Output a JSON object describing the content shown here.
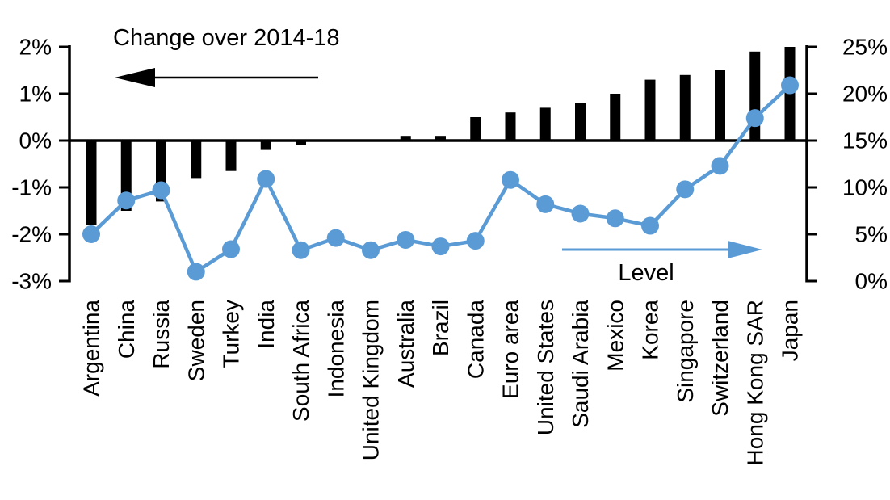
{
  "chart_data": {
    "type": "bar",
    "subtype": "bar-line-combo-dual-axis",
    "categories": [
      "Argentina",
      "China",
      "Russia",
      "Sweden",
      "Turkey",
      "India",
      "South Africa",
      "Indonesia",
      "United Kingdom",
      "Australia",
      "Brazil",
      "Canada",
      "Euro area",
      "United States",
      "Saudi Arabia",
      "Mexico",
      "Korea",
      "Singapore",
      "Switzerland",
      "Hong Kong SAR",
      "Japan"
    ],
    "series": [
      {
        "name": "Change over 2014-18",
        "type": "bar",
        "axis": "left",
        "color": "#000000",
        "values": [
          -1.8,
          -1.5,
          -1.3,
          -0.8,
          -0.65,
          -0.2,
          -0.1,
          0,
          0,
          0.1,
          0.1,
          0.5,
          0.6,
          0.7,
          0.8,
          1.0,
          1.3,
          1.4,
          1.5,
          1.9,
          2.0
        ]
      },
      {
        "name": "Level",
        "type": "line",
        "axis": "right",
        "color": "#5B9BD5",
        "values": [
          5.0,
          8.6,
          9.7,
          1.0,
          3.4,
          10.9,
          3.3,
          4.6,
          3.3,
          4.4,
          3.7,
          4.3,
          10.8,
          8.2,
          7.2,
          6.7,
          5.9,
          9.8,
          12.3,
          17.4,
          20.9
        ]
      }
    ],
    "left_axis": {
      "min": -3,
      "max": 2,
      "tick_step": 1,
      "tick_labels": [
        "2%",
        "1%",
        "0%",
        "-1%",
        "-2%",
        "-3%"
      ]
    },
    "right_axis": {
      "min": 0,
      "max": 25,
      "tick_step": 5,
      "tick_labels": [
        "25%",
        "20%",
        "15%",
        "10%",
        "5%",
        "0%"
      ]
    },
    "annotations": [
      {
        "text": "Change over 2014-18",
        "arrow_direction": "left",
        "color": "#000000"
      },
      {
        "text": "Level",
        "arrow_direction": "right",
        "color": "#5B9BD5"
      }
    ],
    "grid": false,
    "legend_position": "none",
    "background": "#FFFFFF",
    "title": "",
    "xlabel": "",
    "ylabel_left": "Change over 2014-18",
    "ylabel_right": "Level"
  },
  "colors": {
    "bar": "#000000",
    "line": "#5B9BD5",
    "axis": "#000000",
    "background": "#FFFFFF"
  }
}
